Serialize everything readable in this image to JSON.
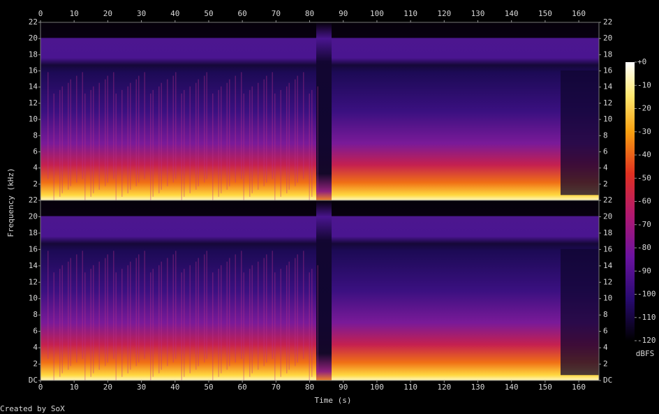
{
  "chart_data": {
    "type": "spectrogram",
    "xlabel": "Time (s)",
    "ylabel": "Frequency (kHz)",
    "xlim": [
      0,
      166
    ],
    "xticks": [
      0,
      10,
      20,
      30,
      40,
      50,
      60,
      70,
      80,
      90,
      100,
      110,
      120,
      130,
      140,
      150,
      160
    ],
    "channels": [
      {
        "ylim": [
          0,
          22
        ],
        "yticks": [
          2,
          4,
          6,
          8,
          10,
          12,
          14,
          16,
          18,
          20,
          22
        ]
      },
      {
        "ylim": [
          0,
          22
        ],
        "yticks": [
          {
            "value": 0,
            "label": "DC"
          },
          2,
          4,
          6,
          8,
          10,
          12,
          14,
          16,
          18,
          20,
          22
        ]
      }
    ],
    "colorbar": {
      "label": "dBFS",
      "lim": [
        -120,
        0
      ],
      "ticks": [
        {
          "value": 0,
          "label": "+0"
        },
        -10,
        -20,
        -30,
        -40,
        -50,
        -60,
        -70,
        -80,
        -90,
        -100,
        -110,
        -120
      ]
    }
  },
  "footer": "Created by SoX"
}
